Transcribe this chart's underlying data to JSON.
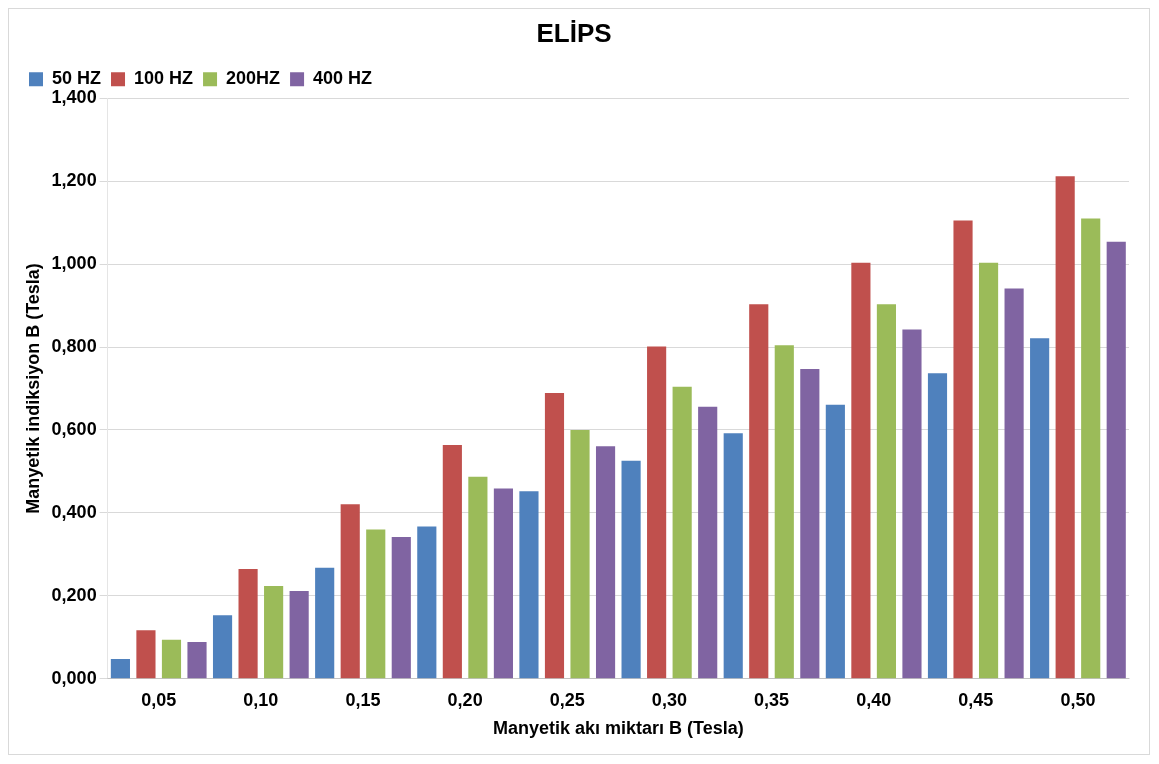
{
  "chart_data": {
    "type": "bar",
    "title": "ELİPS",
    "xlabel": "Manyetik akı miktarı B (Tesla)",
    "ylabel": "Manyetik indiksiyon B (Tesla)",
    "categories": [
      "0,05",
      "0,10",
      "0,15",
      "0,20",
      "0,25",
      "0,30",
      "0,35",
      "0,40",
      "0,45",
      "0,50"
    ],
    "series": [
      {
        "name": "50 HZ",
        "color": "#4f81bd",
        "values": [
          0.048,
          0.153,
          0.268,
          0.367,
          0.452,
          0.526,
          0.592,
          0.661,
          0.737,
          0.821
        ]
      },
      {
        "name": "100 HZ",
        "color": "#c0504d",
        "values": [
          0.117,
          0.265,
          0.421,
          0.564,
          0.689,
          0.801,
          0.903,
          1.003,
          1.105,
          1.212
        ]
      },
      {
        "name": "200HZ",
        "color": "#9bbb59",
        "values": [
          0.094,
          0.224,
          0.36,
          0.487,
          0.6,
          0.704,
          0.804,
          0.903,
          1.003,
          1.11
        ]
      },
      {
        "name": "400 HZ",
        "color": "#8064a2",
        "values": [
          0.089,
          0.212,
          0.342,
          0.459,
          0.561,
          0.656,
          0.747,
          0.842,
          0.941,
          1.054
        ]
      }
    ],
    "ylim": [
      0,
      1.4
    ],
    "yticks": [
      {
        "value": 0,
        "label": "0,000"
      },
      {
        "value": 0.2,
        "label": "0,200"
      },
      {
        "value": 0.4,
        "label": "0,400"
      },
      {
        "value": 0.6,
        "label": "0,600"
      },
      {
        "value": 0.8,
        "label": "0,800"
      },
      {
        "value": 1,
        "label": "1,000"
      },
      {
        "value": 1.2,
        "label": "1,200"
      },
      {
        "value": 1.4,
        "label": "1,400"
      }
    ],
    "grid": "y",
    "legend": "top left"
  }
}
